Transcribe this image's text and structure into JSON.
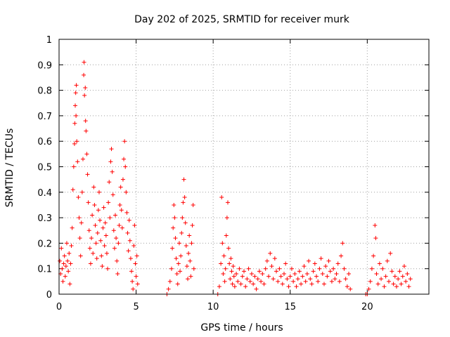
{
  "chart_data": {
    "type": "scatter",
    "title": "Day 202 of 2025, SRMTID for receiver murk",
    "xlabel": "GPS time / hours",
    "ylabel": "SRMTID / TECUs",
    "xlim": [
      0,
      24
    ],
    "ylim": [
      0,
      1
    ],
    "xticks": [
      0,
      5,
      10,
      15,
      20
    ],
    "xtick_labels": [
      "0",
      "5",
      "10",
      "15",
      "20"
    ],
    "yticks": [
      0,
      0.1,
      0.2,
      0.3,
      0.4,
      0.5,
      0.6,
      0.7,
      0.8,
      0.9,
      1
    ],
    "ytick_labels": [
      "0",
      "0.1",
      "0.2",
      "0.3",
      "0.4",
      "0.5",
      "0.6",
      "0.7",
      "0.8",
      "0.9",
      "1"
    ],
    "grid": true,
    "marker": "+",
    "color": "#ff0000",
    "series": [
      {
        "name": "SRMTID",
        "points": [
          [
            0.05,
            0.13
          ],
          [
            0.1,
            0.08
          ],
          [
            0.15,
            0.18
          ],
          [
            0.2,
            0.1
          ],
          [
            0.25,
            0.05
          ],
          [
            0.3,
            0.12
          ],
          [
            0.35,
            0.15
          ],
          [
            0.4,
            0.07
          ],
          [
            0.45,
            0.11
          ],
          [
            0.5,
            0.2
          ],
          [
            0.55,
            0.13
          ],
          [
            0.6,
            0.09
          ],
          [
            0.65,
            0.16
          ],
          [
            0.7,
            0.04
          ],
          [
            0.75,
            0.12
          ],
          [
            0.8,
            0.19
          ],
          [
            0.85,
            0.26
          ],
          [
            0.9,
            0.41
          ],
          [
            0.95,
            0.5
          ],
          [
            1.0,
            0.59
          ],
          [
            1.02,
            0.67
          ],
          [
            1.05,
            0.74
          ],
          [
            1.08,
            0.79
          ],
          [
            1.1,
            0.7
          ],
          [
            1.12,
            0.82
          ],
          [
            1.15,
            0.6
          ],
          [
            1.2,
            0.52
          ],
          [
            1.25,
            0.38
          ],
          [
            1.3,
            0.3
          ],
          [
            1.35,
            0.22
          ],
          [
            1.4,
            0.15
          ],
          [
            1.45,
            0.28
          ],
          [
            1.5,
            0.4
          ],
          [
            1.55,
            0.53
          ],
          [
            1.6,
            0.86
          ],
          [
            1.62,
            0.91
          ],
          [
            1.65,
            0.78
          ],
          [
            1.7,
            0.81
          ],
          [
            1.72,
            0.68
          ],
          [
            1.75,
            0.64
          ],
          [
            1.8,
            0.55
          ],
          [
            1.85,
            0.47
          ],
          [
            1.9,
            0.36
          ],
          [
            1.95,
            0.25
          ],
          [
            2.0,
            0.18
          ],
          [
            2.05,
            0.12
          ],
          [
            2.1,
            0.22
          ],
          [
            2.15,
            0.31
          ],
          [
            2.2,
            0.16
          ],
          [
            2.25,
            0.42
          ],
          [
            2.3,
            0.35
          ],
          [
            2.35,
            0.27
          ],
          [
            2.4,
            0.2
          ],
          [
            2.45,
            0.14
          ],
          [
            2.5,
            0.24
          ],
          [
            2.55,
            0.33
          ],
          [
            2.6,
            0.4
          ],
          [
            2.65,
            0.29
          ],
          [
            2.7,
            0.21
          ],
          [
            2.75,
            0.15
          ],
          [
            2.8,
            0.11
          ],
          [
            2.85,
            0.26
          ],
          [
            2.9,
            0.34
          ],
          [
            2.95,
            0.19
          ],
          [
            3.0,
            0.28
          ],
          [
            3.05,
            0.23
          ],
          [
            3.1,
            0.16
          ],
          [
            3.15,
            0.1
          ],
          [
            3.2,
            0.36
          ],
          [
            3.25,
            0.44
          ],
          [
            3.3,
            0.3
          ],
          [
            3.35,
            0.52
          ],
          [
            3.4,
            0.57
          ],
          [
            3.45,
            0.48
          ],
          [
            3.5,
            0.39
          ],
          [
            3.55,
            0.25
          ],
          [
            3.6,
            0.18
          ],
          [
            3.65,
            0.31
          ],
          [
            3.7,
            0.22
          ],
          [
            3.75,
            0.13
          ],
          [
            3.8,
            0.08
          ],
          [
            3.85,
            0.2
          ],
          [
            3.9,
            0.27
          ],
          [
            3.95,
            0.35
          ],
          [
            4.0,
            0.42
          ],
          [
            4.05,
            0.33
          ],
          [
            4.1,
            0.26
          ],
          [
            4.15,
            0.45
          ],
          [
            4.2,
            0.53
          ],
          [
            4.25,
            0.6
          ],
          [
            4.3,
            0.5
          ],
          [
            4.35,
            0.4
          ],
          [
            4.4,
            0.32
          ],
          [
            4.45,
            0.24
          ],
          [
            4.5,
            0.17
          ],
          [
            4.55,
            0.29
          ],
          [
            4.6,
            0.21
          ],
          [
            4.65,
            0.14
          ],
          [
            4.7,
            0.09
          ],
          [
            4.75,
            0.05
          ],
          [
            4.8,
            0.02
          ],
          [
            4.85,
            0.19
          ],
          [
            4.9,
            0.27
          ],
          [
            4.95,
            0.12
          ],
          [
            5.0,
            0.07
          ],
          [
            5.05,
            0.15
          ],
          [
            5.1,
            0.04
          ],
          [
            7.0,
            0.0
          ],
          [
            7.1,
            0.02
          ],
          [
            7.2,
            0.05
          ],
          [
            7.3,
            0.1
          ],
          [
            7.35,
            0.18
          ],
          [
            7.4,
            0.26
          ],
          [
            7.45,
            0.35
          ],
          [
            7.5,
            0.3
          ],
          [
            7.55,
            0.22
          ],
          [
            7.6,
            0.14
          ],
          [
            7.65,
            0.08
          ],
          [
            7.7,
            0.04
          ],
          [
            7.75,
            0.12
          ],
          [
            7.8,
            0.2
          ],
          [
            7.85,
            0.09
          ],
          [
            7.9,
            0.15
          ],
          [
            7.95,
            0.24
          ],
          [
            8.0,
            0.3
          ],
          [
            8.05,
            0.36
          ],
          [
            8.1,
            0.45
          ],
          [
            8.15,
            0.38
          ],
          [
            8.2,
            0.28
          ],
          [
            8.25,
            0.19
          ],
          [
            8.3,
            0.11
          ],
          [
            8.35,
            0.06
          ],
          [
            8.4,
            0.16
          ],
          [
            8.45,
            0.23
          ],
          [
            8.5,
            0.13
          ],
          [
            8.55,
            0.07
          ],
          [
            8.6,
            0.2
          ],
          [
            8.65,
            0.27
          ],
          [
            8.7,
            0.35
          ],
          [
            8.75,
            0.1
          ],
          [
            10.3,
            0.0
          ],
          [
            10.4,
            0.03
          ],
          [
            10.5,
            0.12
          ],
          [
            10.55,
            0.38
          ],
          [
            10.6,
            0.2
          ],
          [
            10.65,
            0.08
          ],
          [
            10.7,
            0.15
          ],
          [
            10.75,
            0.05
          ],
          [
            10.8,
            0.1
          ],
          [
            10.85,
            0.23
          ],
          [
            10.9,
            0.3
          ],
          [
            10.95,
            0.36
          ],
          [
            11.0,
            0.18
          ],
          [
            11.05,
            0.12
          ],
          [
            11.1,
            0.06
          ],
          [
            11.15,
            0.14
          ],
          [
            11.2,
            0.09
          ],
          [
            11.25,
            0.04
          ],
          [
            11.3,
            0.11
          ],
          [
            11.35,
            0.07
          ],
          [
            11.4,
            0.03
          ],
          [
            11.5,
            0.08
          ],
          [
            11.6,
            0.05
          ],
          [
            11.7,
            0.1
          ],
          [
            11.8,
            0.04
          ],
          [
            11.9,
            0.07
          ],
          [
            12.0,
            0.09
          ],
          [
            12.1,
            0.03
          ],
          [
            12.2,
            0.06
          ],
          [
            12.3,
            0.1
          ],
          [
            12.4,
            0.05
          ],
          [
            12.5,
            0.08
          ],
          [
            12.6,
            0.04
          ],
          [
            12.7,
            0.07
          ],
          [
            12.8,
            0.02
          ],
          [
            12.9,
            0.06
          ],
          [
            13.0,
            0.09
          ],
          [
            13.1,
            0.05
          ],
          [
            13.2,
            0.08
          ],
          [
            13.3,
            0.04
          ],
          [
            13.4,
            0.1
          ],
          [
            13.5,
            0.13
          ],
          [
            13.6,
            0.07
          ],
          [
            13.7,
            0.16
          ],
          [
            13.8,
            0.11
          ],
          [
            13.9,
            0.06
          ],
          [
            14.0,
            0.14
          ],
          [
            14.1,
            0.09
          ],
          [
            14.2,
            0.05
          ],
          [
            14.3,
            0.1
          ],
          [
            14.4,
            0.07
          ],
          [
            14.5,
            0.04
          ],
          [
            14.6,
            0.08
          ],
          [
            14.7,
            0.12
          ],
          [
            14.8,
            0.06
          ],
          [
            14.9,
            0.03
          ],
          [
            15.0,
            0.07
          ],
          [
            15.1,
            0.1
          ],
          [
            15.2,
            0.05
          ],
          [
            15.3,
            0.08
          ],
          [
            15.4,
            0.03
          ],
          [
            15.5,
            0.06
          ],
          [
            15.6,
            0.09
          ],
          [
            15.7,
            0.04
          ],
          [
            15.8,
            0.07
          ],
          [
            15.9,
            0.11
          ],
          [
            16.0,
            0.05
          ],
          [
            16.1,
            0.08
          ],
          [
            16.2,
            0.13
          ],
          [
            16.3,
            0.06
          ],
          [
            16.4,
            0.04
          ],
          [
            16.5,
            0.09
          ],
          [
            16.6,
            0.12
          ],
          [
            16.7,
            0.07
          ],
          [
            16.8,
            0.05
          ],
          [
            16.9,
            0.1
          ],
          [
            17.0,
            0.14
          ],
          [
            17.1,
            0.08
          ],
          [
            17.2,
            0.04
          ],
          [
            17.3,
            0.11
          ],
          [
            17.4,
            0.07
          ],
          [
            17.5,
            0.13
          ],
          [
            17.6,
            0.09
          ],
          [
            17.7,
            0.05
          ],
          [
            17.8,
            0.1
          ],
          [
            17.9,
            0.06
          ],
          [
            18.0,
            0.08
          ],
          [
            18.1,
            0.12
          ],
          [
            18.2,
            0.05
          ],
          [
            18.3,
            0.15
          ],
          [
            18.4,
            0.2
          ],
          [
            18.5,
            0.1
          ],
          [
            18.6,
            0.06
          ],
          [
            18.7,
            0.03
          ],
          [
            18.8,
            0.08
          ],
          [
            18.9,
            0.02
          ],
          [
            19.9,
            0.0
          ],
          [
            20.0,
            0.0
          ],
          [
            20.1,
            0.02
          ],
          [
            20.2,
            0.05
          ],
          [
            20.3,
            0.1
          ],
          [
            20.4,
            0.15
          ],
          [
            20.5,
            0.27
          ],
          [
            20.55,
            0.22
          ],
          [
            20.6,
            0.08
          ],
          [
            20.7,
            0.04
          ],
          [
            20.8,
            0.12
          ],
          [
            20.9,
            0.06
          ],
          [
            21.0,
            0.1
          ],
          [
            21.1,
            0.03
          ],
          [
            21.2,
            0.07
          ],
          [
            21.3,
            0.13
          ],
          [
            21.4,
            0.05
          ],
          [
            21.5,
            0.16
          ],
          [
            21.6,
            0.09
          ],
          [
            21.7,
            0.04
          ],
          [
            21.8,
            0.07
          ],
          [
            21.9,
            0.03
          ],
          [
            22.0,
            0.06
          ],
          [
            22.1,
            0.09
          ],
          [
            22.2,
            0.04
          ],
          [
            22.3,
            0.07
          ],
          [
            22.4,
            0.11
          ],
          [
            22.5,
            0.05
          ],
          [
            22.6,
            0.08
          ],
          [
            22.7,
            0.03
          ],
          [
            22.8,
            0.06
          ]
        ]
      }
    ]
  }
}
